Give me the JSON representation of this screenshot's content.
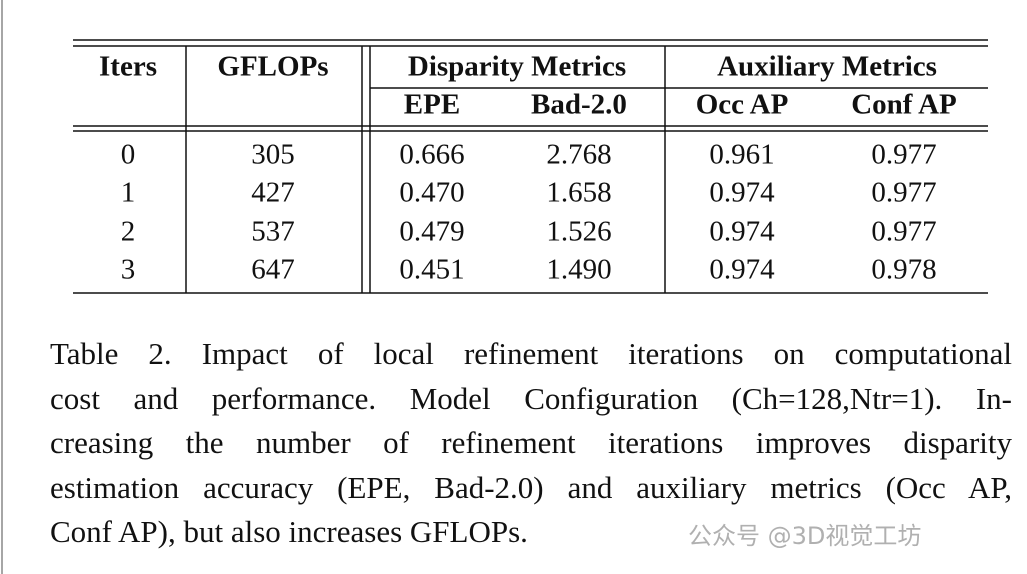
{
  "table": {
    "columns": [
      "Iters",
      "GFLOPs"
    ],
    "groups": [
      {
        "label": "Disparity Metrics",
        "columns": [
          "EPE",
          "Bad-2.0"
        ]
      },
      {
        "label": "Auxiliary Metrics",
        "columns": [
          "Occ AP",
          "Conf AP"
        ]
      }
    ],
    "rows": [
      [
        "0",
        "305",
        "0.666",
        "2.768",
        "0.961",
        "0.977"
      ],
      [
        "1",
        "427",
        "0.470",
        "1.658",
        "0.974",
        "0.977"
      ],
      [
        "2",
        "537",
        "0.479",
        "1.526",
        "0.974",
        "0.977"
      ],
      [
        "3",
        "647",
        "0.451",
        "1.490",
        "0.974",
        "0.978"
      ]
    ]
  },
  "caption": {
    "lines": [
      "Table 2.  Impact of local refinement iterations on computational",
      "cost and performance. Model Configuration (Ch=128,Ntr=1). In-",
      "creasing the number of refinement iterations improves disparity",
      "estimation accuracy (EPE, Bad-2.0) and auxiliary metrics (Occ AP,",
      "Conf AP), but also increases GFLOPs."
    ]
  },
  "watermark": "公众号 @3D视觉工坊"
}
